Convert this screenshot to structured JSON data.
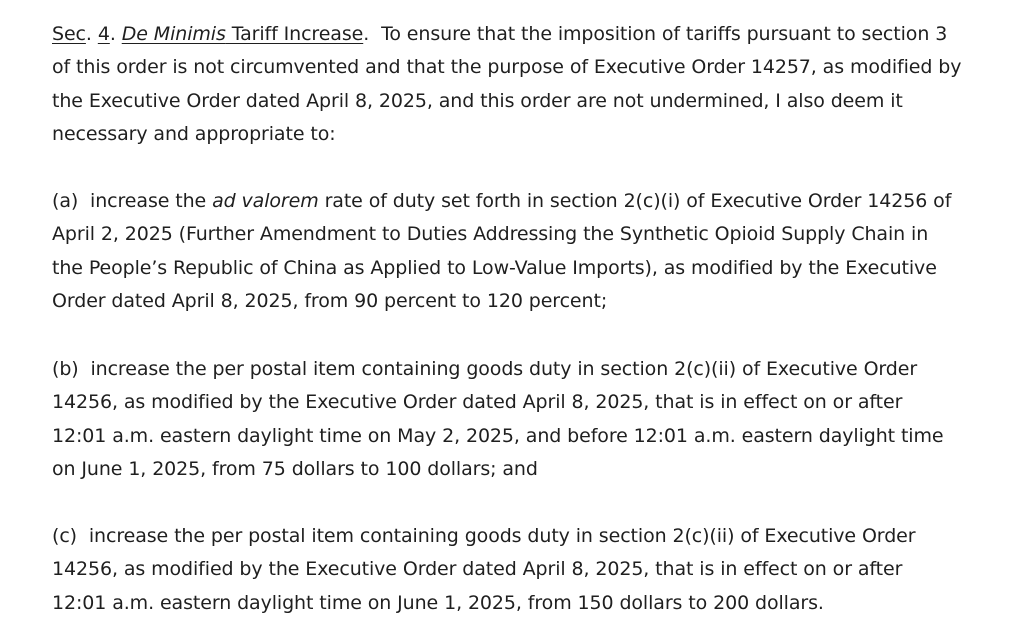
{
  "section": {
    "sec_label": "Sec",
    "sec_dot": ".",
    "space1": " ",
    "number": "4",
    "number_dot": ".",
    "space2": " ",
    "heading_italic": "De Minimis",
    "heading_rest": " Tariff Increase",
    "heading_dot": ".",
    "intro_text": "  To ensure that the imposition of tariffs pursuant to section 3 of this order is not circumvented and that the purpose of Executive Order 14257, as modified by the Executive Order dated April 8, 2025, and this order are not undermined, I also deem it necessary and appropriate to:"
  },
  "items": {
    "a": {
      "prefix": "(a)  increase the ",
      "italic": "ad valorem",
      "rest": " rate of duty set forth in section 2(c)(i) of Executive Order 14256 of April 2, 2025 (Further Amendment to Duties Addressing the Synthetic Opioid Supply Chain in the People’s Republic of China as Applied to Low-Value Imports), as modified by the Executive Order dated April 8, 2025, from 90 percent to 120 percent;"
    },
    "b": {
      "text": "(b)  increase the per postal item containing goods duty in section 2(c)(ii) of Executive Order 14256, as modified by the Executive Order dated April 8, 2025, that is in effect on or after 12:01 a.m. eastern daylight time on May 2, 2025, and before 12:01 a.m. eastern daylight time on June 1, 2025, from 75 dollars to 100 dollars; and"
    },
    "c": {
      "text": "(c)  increase the per postal item containing goods duty in section 2(c)(ii) of Executive Order 14256, as modified by the Executive Order dated April 8, 2025, that is in effect on or after 12:01 a.m. eastern daylight time on June 1, 2025, from 150 dollars to 200 dollars."
    }
  }
}
